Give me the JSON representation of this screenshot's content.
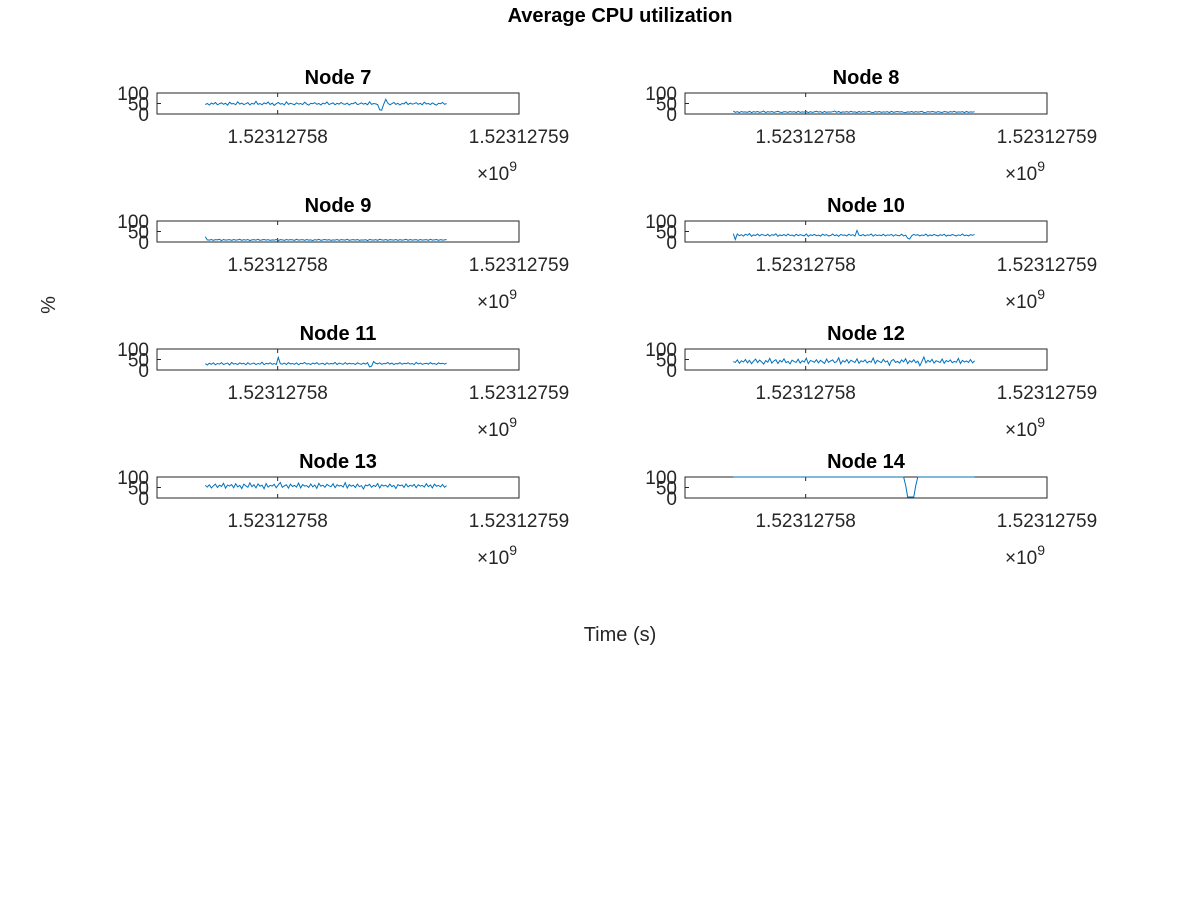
{
  "figure_title": "Average CPU utilization",
  "ylabel": "%",
  "xlabel": "Time (s)",
  "colors": {
    "series": "#0072BD",
    "axes": "#262626",
    "text": "#262626"
  },
  "chart_data": [
    {
      "type": "line",
      "title": "Node 7",
      "xlim": [
        1523127575,
        1523127590
      ],
      "ylim": [
        0,
        100
      ],
      "x_tick_labels": [
        "1.52312758",
        "1.52312759"
      ],
      "x_exponent": "×10",
      "x_exponent_power": "9",
      "y_tick_labels": [
        "0",
        "50",
        "100"
      ],
      "series": [
        {
          "x_start": 1523127577,
          "x_end": 1523127587,
          "values": [
            45,
            50,
            43,
            52,
            47,
            55,
            44,
            49,
            53,
            46,
            51,
            42,
            56,
            48,
            50,
            44,
            58,
            47,
            52,
            45,
            49,
            54,
            43,
            51,
            47,
            60,
            46,
            50,
            44,
            53,
            48,
            57,
            45,
            52,
            41,
            49,
            55,
            47,
            50,
            43,
            58,
            46,
            51,
            48,
            44,
            53,
            47,
            50,
            45,
            56,
            48,
            42,
            51,
            49,
            54,
            46,
            50,
            43,
            52,
            48,
            57,
            45,
            49,
            53,
            44,
            51,
            47,
            55,
            48,
            46,
            52,
            43,
            50,
            49,
            56,
            45,
            48,
            53,
            47,
            51,
            44,
            58,
            46,
            50,
            48,
            45,
            20,
            18,
            47,
            70,
            52,
            44,
            49,
            55,
            46,
            51,
            43,
            50,
            48,
            57,
            45,
            52,
            47,
            49,
            54,
            46,
            51,
            44,
            56,
            48,
            50,
            45,
            53,
            47,
            42,
            51,
            49,
            55,
            46,
            50
          ]
        }
      ]
    },
    {
      "type": "line",
      "title": "Node 8",
      "xlim": [
        1523127575,
        1523127590
      ],
      "ylim": [
        0,
        100
      ],
      "x_tick_labels": [
        "1.52312758",
        "1.52312759"
      ],
      "x_exponent": "×10",
      "x_exponent_power": "9",
      "y_tick_labels": [
        "0",
        "50",
        "100"
      ],
      "series": [
        {
          "x_start": 1523127577,
          "x_end": 1523127587,
          "values": [
            14,
            8,
            11,
            7,
            12,
            9,
            10,
            8,
            13,
            7,
            11,
            9,
            12,
            8,
            10,
            14,
            7,
            11,
            9,
            12,
            8,
            10,
            13,
            9,
            7,
            11,
            10,
            8,
            12,
            9,
            11,
            7,
            13,
            8,
            10,
            9,
            12,
            7,
            11,
            8,
            10,
            13,
            9,
            11,
            7,
            12,
            8,
            10,
            9,
            11,
            14,
            8,
            12,
            7,
            10,
            9,
            11,
            8,
            13,
            9,
            10,
            7,
            12,
            8,
            11,
            9,
            10,
            13,
            8,
            7,
            11,
            9,
            12,
            8,
            10,
            9,
            11,
            7,
            13,
            8,
            10,
            12,
            9,
            11,
            8,
            7,
            10,
            9,
            12,
            8,
            11,
            9,
            10,
            13,
            7,
            8,
            11,
            9,
            12,
            10,
            8,
            11,
            9,
            7,
            12,
            10,
            8,
            11,
            9,
            13,
            8,
            10,
            9,
            11,
            7,
            12,
            8,
            10,
            9,
            11
          ]
        }
      ]
    },
    {
      "type": "line",
      "title": "Node 9",
      "xlim": [
        1523127575,
        1523127590
      ],
      "ylim": [
        0,
        100
      ],
      "x_tick_labels": [
        "1.52312758",
        "1.52312759"
      ],
      "x_exponent": "×10",
      "x_exponent_power": "9",
      "y_tick_labels": [
        "0",
        "50",
        "100"
      ],
      "series": [
        {
          "x_start": 1523127577,
          "x_end": 1523127587,
          "values": [
            25,
            10,
            9,
            12,
            8,
            11,
            10,
            13,
            7,
            12,
            9,
            10,
            11,
            8,
            12,
            9,
            10,
            13,
            8,
            11,
            9,
            12,
            7,
            10,
            11,
            9,
            13,
            8,
            10,
            12,
            9,
            11,
            8,
            10,
            9,
            12,
            7,
            11,
            10,
            8,
            12,
            9,
            11,
            10,
            8,
            13,
            9,
            10,
            11,
            8,
            12,
            9,
            10,
            7,
            11,
            9,
            13,
            8,
            10,
            12,
            9,
            11,
            8,
            10,
            9,
            12,
            8,
            11,
            10,
            9,
            13,
            8,
            10,
            11,
            9,
            12,
            8,
            10,
            9,
            11,
            7,
            12,
            10,
            9,
            11,
            8,
            13,
            10,
            9,
            12,
            8,
            11,
            10,
            9,
            12,
            8,
            11,
            9,
            10,
            13,
            8,
            12,
            9,
            10,
            11,
            8,
            12,
            9,
            10,
            11,
            8,
            13,
            9,
            10,
            12,
            8,
            11,
            9,
            10,
            12
          ]
        }
      ]
    },
    {
      "type": "line",
      "title": "Node 10",
      "xlim": [
        1523127575,
        1523127590
      ],
      "ylim": [
        0,
        100
      ],
      "x_tick_labels": [
        "1.52312758",
        "1.52312759"
      ],
      "x_exponent": "×10",
      "x_exponent_power": "9",
      "y_tick_labels": [
        "0",
        "50",
        "100"
      ],
      "series": [
        {
          "x_start": 1523127577,
          "x_end": 1523127587,
          "values": [
            40,
            12,
            38,
            30,
            35,
            28,
            37,
            32,
            40,
            27,
            34,
            31,
            38,
            29,
            36,
            33,
            30,
            37,
            28,
            35,
            32,
            39,
            27,
            34,
            30,
            36,
            29,
            38,
            31,
            33,
            28,
            37,
            30,
            35,
            32,
            29,
            38,
            27,
            34,
            31,
            36,
            30,
            33,
            28,
            37,
            32,
            35,
            29,
            31,
            38,
            30,
            34,
            27,
            36,
            32,
            33,
            29,
            37,
            31,
            35,
            28,
            55,
            33,
            30,
            36,
            29,
            34,
            32,
            38,
            28,
            35,
            31,
            33,
            30,
            37,
            29,
            34,
            32,
            36,
            28,
            35,
            31,
            30,
            37,
            29,
            33,
            18,
            14,
            30,
            36,
            32,
            35,
            29,
            33,
            31,
            38,
            28,
            34,
            30,
            36,
            32,
            29,
            35,
            31,
            37,
            28,
            33,
            30,
            36,
            32,
            29,
            34,
            31,
            38,
            30,
            33,
            29,
            35,
            32,
            36
          ]
        }
      ]
    },
    {
      "type": "line",
      "title": "Node 11",
      "xlim": [
        1523127575,
        1523127590
      ],
      "ylim": [
        0,
        100
      ],
      "x_tick_labels": [
        "1.52312758",
        "1.52312759"
      ],
      "x_exponent": "×10",
      "x_exponent_power": "9",
      "y_tick_labels": [
        "0",
        "50",
        "100"
      ],
      "series": [
        {
          "x_start": 1523127577,
          "x_end": 1523127587,
          "values": [
            30,
            24,
            32,
            27,
            34,
            25,
            31,
            28,
            35,
            26,
            30,
            33,
            24,
            36,
            28,
            31,
            26,
            34,
            29,
            32,
            25,
            35,
            27,
            30,
            33,
            26,
            31,
            28,
            37,
            25,
            32,
            29,
            34,
            27,
            31,
            26,
            60,
            30,
            28,
            33,
            26,
            35,
            29,
            31,
            27,
            34,
            25,
            32,
            30,
            36,
            28,
            31,
            26,
            33,
            29,
            35,
            27,
            30,
            32,
            25,
            34,
            28,
            31,
            29,
            36,
            26,
            33,
            30,
            27,
            35,
            28,
            32,
            29,
            31,
            26,
            34,
            30,
            27,
            33,
            28,
            35,
            15,
            18,
            40,
            32,
            29,
            34,
            27,
            31,
            30,
            36,
            28,
            33,
            26,
            31,
            29,
            35,
            27,
            32,
            30,
            34,
            28,
            31,
            26,
            36,
            29,
            33,
            27,
            30,
            32,
            28,
            35,
            29,
            31,
            26,
            34,
            30,
            32,
            28,
            33
          ]
        }
      ]
    },
    {
      "type": "line",
      "title": "Node 12",
      "xlim": [
        1523127575,
        1523127590
      ],
      "ylim": [
        0,
        100
      ],
      "x_tick_labels": [
        "1.52312758",
        "1.52312759"
      ],
      "x_exponent": "×10",
      "x_exponent_power": "9",
      "y_tick_labels": [
        "0",
        "50",
        "100"
      ],
      "series": [
        {
          "x_start": 1523127577,
          "x_end": 1523127587,
          "values": [
            40,
            36,
            48,
            32,
            44,
            38,
            50,
            34,
            46,
            30,
            42,
            52,
            35,
            47,
            39,
            28,
            45,
            37,
            55,
            33,
            43,
            49,
            31,
            46,
            38,
            53,
            35,
            41,
            29,
            47,
            40,
            36,
            51,
            33,
            44,
            38,
            56,
            30,
            45,
            42,
            37,
            49,
            34,
            46,
            39,
            31,
            52,
            36,
            43,
            48,
            35,
            40,
            58,
            29,
            45,
            38,
            50,
            33,
            47,
            41,
            36,
            53,
            32,
            44,
            39,
            48,
            34,
            42,
            37,
            57,
            31,
            46,
            40,
            35,
            51,
            38,
            43,
            22,
            45,
            50,
            36,
            41,
            33,
            48,
            39,
            54,
            30,
            44,
            37,
            49,
            35,
            42,
            20,
            40,
            62,
            34,
            46,
            38,
            51,
            33,
            44,
            40,
            36,
            52,
            32,
            45,
            39,
            48,
            35,
            41,
            37,
            55,
            31,
            46,
            38,
            43,
            36,
            50,
            34,
            44
          ]
        }
      ]
    },
    {
      "type": "line",
      "title": "Node 13",
      "xlim": [
        1523127575,
        1523127590
      ],
      "ylim": [
        0,
        100
      ],
      "x_tick_labels": [
        "1.52312758",
        "1.52312759"
      ],
      "x_exponent": "×10",
      "x_exponent_power": "9",
      "y_tick_labels": [
        "0",
        "50",
        "100"
      ],
      "series": [
        {
          "x_start": 1523127577,
          "x_end": 1523127587,
          "values": [
            60,
            52,
            63,
            48,
            58,
            66,
            50,
            61,
            55,
            70,
            47,
            62,
            57,
            64,
            49,
            68,
            53,
            60,
            45,
            66,
            58,
            51,
            72,
            54,
            63,
            48,
            67,
            56,
            61,
            44,
            69,
            52,
            60,
            57,
            65,
            49,
            62,
            74,
            51,
            58,
            63,
            47,
            66,
            55,
            60,
            52,
            71,
            48,
            64,
            57,
            59,
            50,
            67,
            53,
            62,
            46,
            70,
            56,
            61,
            51,
            65,
            58,
            54,
            68,
            49,
            63,
            57,
            60,
            52,
            73,
            47,
            64,
            56,
            61,
            50,
            66,
            54,
            59,
            43,
            62,
            58,
            65,
            51,
            60,
            55,
            69,
            48,
            63,
            57,
            61,
            52,
            66,
            54,
            60,
            45,
            64,
            58,
            62,
            50,
            67,
            53,
            61,
            56,
            65,
            49,
            63,
            57,
            60,
            52,
            68,
            54,
            62,
            48,
            66,
            56,
            60,
            53,
            64,
            51,
            59
          ]
        }
      ]
    },
    {
      "type": "line",
      "title": "Node 14",
      "xlim": [
        1523127575,
        1523127590
      ],
      "ylim": [
        0,
        100
      ],
      "x_tick_labels": [
        "1.52312758",
        "1.52312759"
      ],
      "x_exponent": "×10",
      "x_exponent_power": "9",
      "y_tick_labels": [
        "0",
        "50",
        "100"
      ],
      "series": [
        {
          "x_start": 1523127577,
          "x_end": 1523127587,
          "values": [
            100,
            100,
            100,
            100,
            100,
            100,
            100,
            100,
            100,
            100,
            100,
            100,
            100,
            100,
            100,
            100,
            100,
            100,
            100,
            100,
            100,
            100,
            100,
            100,
            100,
            100,
            100,
            100,
            100,
            100,
            100,
            100,
            100,
            100,
            100,
            100,
            100,
            100,
            100,
            100,
            100,
            100,
            100,
            100,
            100,
            100,
            100,
            100,
            100,
            100,
            100,
            100,
            100,
            100,
            100,
            100,
            100,
            100,
            100,
            100,
            100,
            100,
            100,
            100,
            100,
            100,
            100,
            100,
            100,
            100,
            100,
            100,
            100,
            100,
            100,
            100,
            100,
            100,
            100,
            100,
            100,
            100,
            100,
            100,
            100,
            60,
            5,
            5,
            5,
            5,
            60,
            100,
            100,
            100,
            100,
            100,
            100,
            100,
            100,
            100,
            100,
            100,
            100,
            100,
            100,
            100,
            100,
            100,
            100,
            100,
            100,
            100,
            100,
            100,
            100,
            100,
            100,
            100,
            100,
            100
          ]
        }
      ]
    }
  ]
}
